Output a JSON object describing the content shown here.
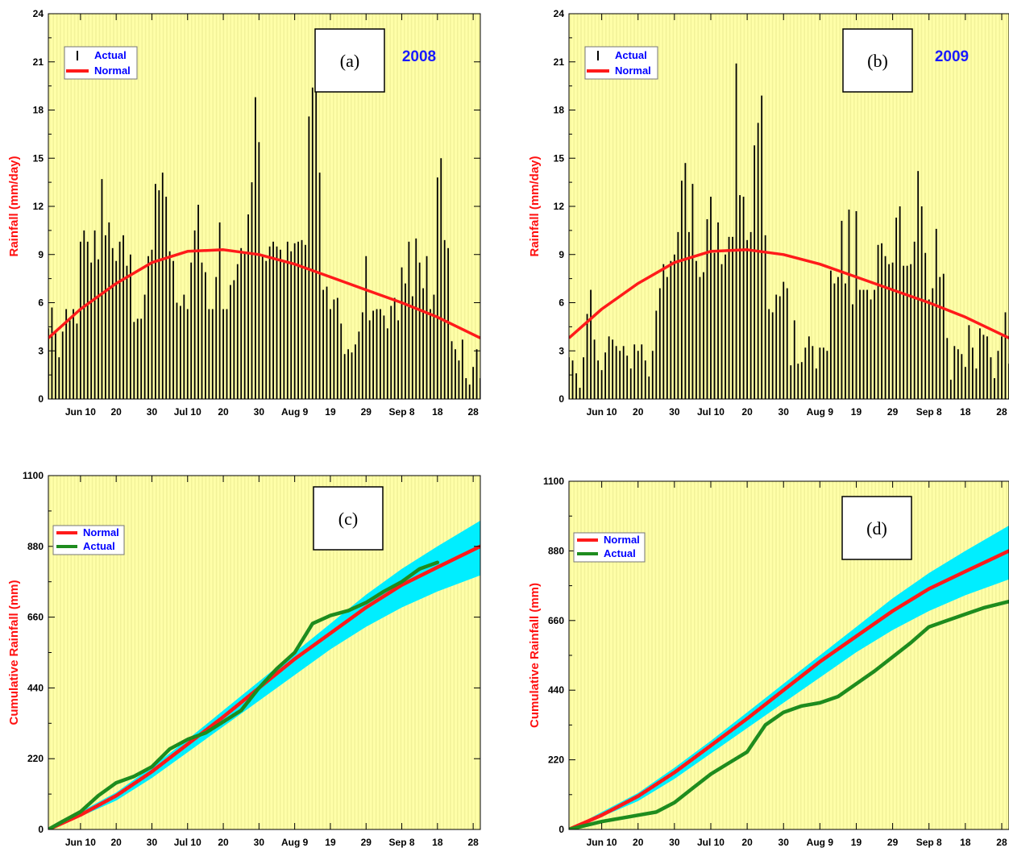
{
  "figure": {
    "colors": {
      "background": "#ffffa8",
      "stripe": "#f2f29a",
      "bars": "#000000",
      "normal": "#ff1a1a",
      "actual_line": "#1e8c1e",
      "band": "#00eeff",
      "ylabel": "#ff1010",
      "legend_text": "#0000ff"
    }
  },
  "chart_data": [
    {
      "id": "a",
      "type": "bar",
      "panel_label": "(a)",
      "year_label": "2008",
      "ylabel": "Rainfall (mm/day)",
      "ylim": [
        0,
        24
      ],
      "yticks": [
        "0",
        "3",
        "6",
        "9",
        "12",
        "15",
        "18",
        "21",
        "24"
      ],
      "xlim": [
        1,
        122
      ],
      "xtick_labels": [
        "Jun 10",
        "20",
        "30",
        "Jul 10",
        "20",
        "30",
        "Aug 9",
        "19",
        "29",
        "Sep 8",
        "18",
        "28"
      ],
      "xtick_days": [
        10,
        20,
        30,
        40,
        50,
        60,
        70,
        80,
        90,
        100,
        110,
        120
      ],
      "legend": [
        "Actual",
        "Normal"
      ],
      "grid": false,
      "normal_curve": {
        "name": "Normal",
        "x": [
          1,
          10,
          20,
          30,
          40,
          50,
          60,
          70,
          80,
          90,
          100,
          110,
          122
        ],
        "y": [
          3.8,
          5.6,
          7.2,
          8.5,
          9.2,
          9.3,
          9.0,
          8.4,
          7.6,
          6.8,
          6.0,
          5.1,
          3.8
        ]
      },
      "series": [
        {
          "name": "Actual",
          "values": [
            4.4,
            5.7,
            4.1,
            2.6,
            4.2,
            5.6,
            4.9,
            5.6,
            4.7,
            9.8,
            10.5,
            9.8,
            8.5,
            10.5,
            8.7,
            13.7,
            10.2,
            11.0,
            9.4,
            8.6,
            9.8,
            10.2,
            8.3,
            9.0,
            4.8,
            5.0,
            5.0,
            6.5,
            8.9,
            9.3,
            13.4,
            13.0,
            14.1,
            12.6,
            9.2,
            8.6,
            6.0,
            5.8,
            6.5,
            5.6,
            8.5,
            10.5,
            12.1,
            8.5,
            7.9,
            5.6,
            5.6,
            7.6,
            11.0,
            5.6,
            5.6,
            7.1,
            7.4,
            8.4,
            9.4,
            9.1,
            11.5,
            13.5,
            18.8,
            16.0,
            9.0,
            8.6,
            9.5,
            9.8,
            9.5,
            9.3,
            8.6,
            9.8,
            9.2,
            9.7,
            9.8,
            9.9,
            9.6,
            17.6,
            19.4,
            20.7,
            14.1,
            6.8,
            7.0,
            5.6,
            6.2,
            6.3,
            4.7,
            2.8,
            3.1,
            2.9,
            3.4,
            4.2,
            5.4,
            8.9,
            4.9,
            5.5,
            5.6,
            5.6,
            5.2,
            4.4,
            5.8,
            6.3,
            4.9,
            8.2,
            7.2,
            9.8,
            6.4,
            10.0,
            8.5,
            6.9,
            8.9,
            5.6,
            6.5,
            13.8,
            15.0,
            9.9,
            9.4,
            3.6,
            3.1,
            2.4,
            3.7,
            1.3,
            0.9,
            2.0,
            3.1,
            1.3
          ]
        }
      ]
    },
    {
      "id": "b",
      "type": "bar",
      "panel_label": "(b)",
      "year_label": "2009",
      "ylabel": "Rainfall (mm/day)",
      "ylim": [
        0,
        24
      ],
      "yticks": [
        "0",
        "3",
        "6",
        "9",
        "12",
        "15",
        "18",
        "21",
        "24"
      ],
      "xlim": [
        1,
        122
      ],
      "xtick_labels": [
        "Jun 10",
        "20",
        "30",
        "Jul 10",
        "20",
        "30",
        "Aug 9",
        "19",
        "29",
        "Sep 8",
        "18",
        "28"
      ],
      "xtick_days": [
        10,
        20,
        30,
        40,
        50,
        60,
        70,
        80,
        90,
        100,
        110,
        120
      ],
      "legend": [
        "Actual",
        "Normal"
      ],
      "grid": false,
      "normal_curve": {
        "name": "Normal",
        "x": [
          1,
          10,
          20,
          30,
          40,
          50,
          60,
          70,
          80,
          90,
          100,
          110,
          122
        ],
        "y": [
          3.8,
          5.6,
          7.2,
          8.5,
          9.2,
          9.3,
          9.0,
          8.4,
          7.6,
          6.8,
          6.0,
          5.1,
          3.8
        ]
      },
      "series": [
        {
          "name": "Actual",
          "values": [
            2.6,
            2.4,
            1.6,
            0.7,
            2.6,
            5.3,
            6.8,
            3.7,
            2.4,
            1.8,
            2.9,
            3.9,
            3.7,
            3.3,
            3.0,
            3.3,
            2.7,
            1.9,
            3.4,
            3.0,
            3.4,
            2.4,
            1.4,
            3.0,
            5.5,
            6.9,
            8.4,
            7.6,
            8.6,
            9.0,
            10.4,
            13.6,
            14.7,
            10.4,
            13.4,
            8.6,
            7.6,
            7.9,
            11.2,
            12.6,
            9.1,
            11.0,
            8.4,
            9.0,
            10.1,
            10.1,
            20.9,
            12.7,
            12.6,
            9.9,
            10.4,
            15.8,
            17.2,
            18.9,
            10.2,
            5.6,
            5.4,
            6.5,
            6.4,
            7.3,
            6.9,
            2.1,
            4.9,
            2.2,
            2.3,
            3.2,
            3.9,
            3.3,
            1.9,
            3.2,
            3.2,
            3.0,
            8.0,
            7.2,
            7.6,
            11.1,
            7.2,
            11.8,
            5.9,
            11.7,
            6.8,
            6.8,
            6.8,
            6.2,
            6.8,
            9.6,
            9.7,
            8.9,
            8.4,
            8.5,
            11.3,
            12.0,
            8.3,
            8.3,
            8.4,
            9.8,
            14.2,
            12.0,
            9.1,
            6.2,
            6.9,
            10.6,
            7.6,
            7.8,
            3.8,
            1.2,
            3.3,
            3.1,
            2.8,
            2.0,
            4.6,
            3.2,
            1.9,
            4.4,
            4.0,
            3.9,
            2.6,
            1.3,
            3.0,
            3.9,
            5.4,
            2.2
          ]
        }
      ]
    },
    {
      "id": "c",
      "type": "line",
      "panel_label": "(c)",
      "ylabel": "Cumulative Rainfall (mm)",
      "ylim": [
        0,
        1100
      ],
      "yticks": [
        "0",
        "220",
        "440",
        "660",
        "880",
        "1100"
      ],
      "xlim": [
        1,
        122
      ],
      "xtick_labels": [
        "Jun 10",
        "20",
        "30",
        "Jul 10",
        "20",
        "30",
        "Aug 9",
        "19",
        "29",
        "Sep 8",
        "18",
        "28"
      ],
      "xtick_days": [
        10,
        20,
        30,
        40,
        50,
        60,
        70,
        80,
        90,
        100,
        110,
        120
      ],
      "legend": [
        "Normal",
        "Actual"
      ],
      "grid": false,
      "x": [
        1,
        10,
        20,
        30,
        40,
        50,
        60,
        70,
        80,
        90,
        100,
        110,
        122
      ],
      "band": {
        "lower": [
          0,
          40,
          90,
          160,
          240,
          320,
          400,
          480,
          560,
          630,
          690,
          740,
          790
        ],
        "upper": [
          0,
          55,
          115,
          195,
          280,
          370,
          460,
          550,
          640,
          730,
          810,
          880,
          960
        ]
      },
      "series": [
        {
          "name": "Normal",
          "x": [
            1,
            10,
            20,
            30,
            40,
            50,
            60,
            70,
            80,
            90,
            100,
            110,
            122
          ],
          "values": [
            0,
            45,
            105,
            180,
            265,
            350,
            440,
            530,
            610,
            690,
            760,
            815,
            880
          ]
        },
        {
          "name": "Actual",
          "x": [
            1,
            5,
            10,
            15,
            20,
            25,
            30,
            35,
            40,
            45,
            50,
            55,
            60,
            65,
            70,
            75,
            80,
            85,
            90,
            95,
            100,
            105,
            110
          ],
          "values": [
            0,
            25,
            55,
            105,
            145,
            165,
            195,
            250,
            280,
            300,
            335,
            370,
            440,
            500,
            550,
            640,
            665,
            680,
            705,
            740,
            770,
            810,
            830
          ]
        }
      ]
    },
    {
      "id": "d",
      "type": "line",
      "panel_label": "(d)",
      "ylabel": "Cumulative Rainfall (mm)",
      "ylim": [
        0,
        1100
      ],
      "yticks": [
        "0",
        "220",
        "440",
        "660",
        "880",
        "1100"
      ],
      "xlim": [
        1,
        122
      ],
      "xtick_labels": [
        "Jun 10",
        "20",
        "30",
        "Jul 10",
        "20",
        "30",
        "Aug 9",
        "19",
        "29",
        "Sep 8",
        "18",
        "28"
      ],
      "xtick_days": [
        10,
        20,
        30,
        40,
        50,
        60,
        70,
        80,
        90,
        100,
        110,
        120
      ],
      "legend": [
        "Normal",
        "Actual"
      ],
      "grid": false,
      "x": [
        1,
        10,
        20,
        30,
        40,
        50,
        60,
        70,
        80,
        90,
        100,
        110,
        122
      ],
      "band": {
        "lower": [
          0,
          40,
          90,
          160,
          240,
          320,
          400,
          480,
          560,
          630,
          690,
          740,
          790
        ],
        "upper": [
          0,
          55,
          115,
          195,
          280,
          370,
          460,
          550,
          640,
          730,
          810,
          880,
          960
        ]
      },
      "series": [
        {
          "name": "Normal",
          "x": [
            1,
            10,
            20,
            30,
            40,
            50,
            60,
            70,
            80,
            90,
            100,
            110,
            122
          ],
          "values": [
            0,
            45,
            105,
            180,
            265,
            350,
            440,
            530,
            610,
            690,
            760,
            815,
            880
          ]
        },
        {
          "name": "Actual",
          "x": [
            1,
            10,
            20,
            25,
            30,
            35,
            40,
            45,
            50,
            55,
            60,
            65,
            70,
            75,
            80,
            85,
            90,
            95,
            100,
            105,
            110,
            115,
            122
          ],
          "values": [
            0,
            25,
            45,
            55,
            85,
            130,
            175,
            210,
            245,
            330,
            370,
            390,
            400,
            420,
            460,
            500,
            545,
            590,
            640,
            660,
            680,
            700,
            720
          ]
        }
      ]
    }
  ]
}
